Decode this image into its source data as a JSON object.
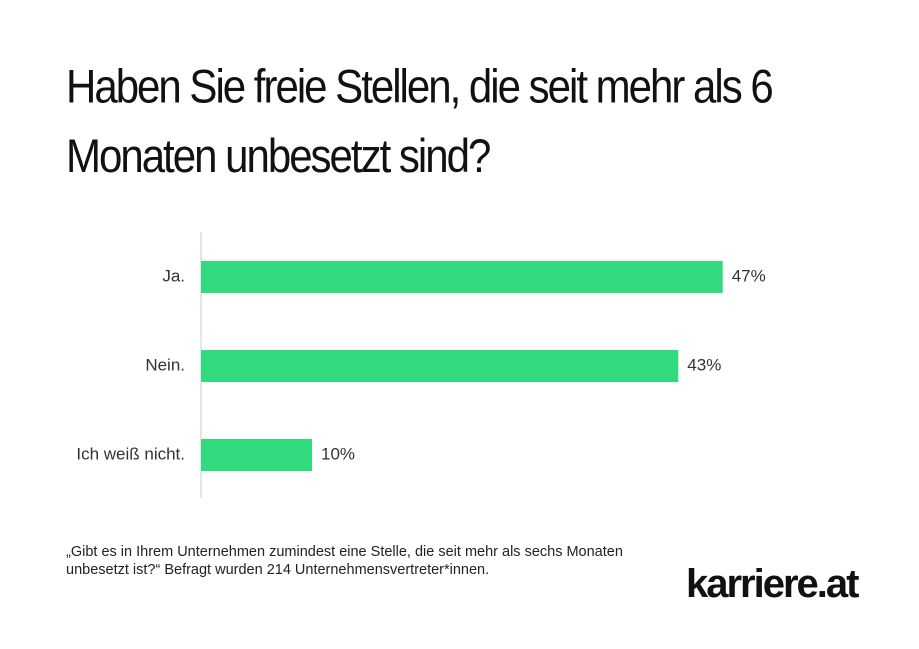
{
  "chart_data": {
    "type": "bar",
    "orientation": "horizontal",
    "title": "Haben Sie freie Stellen, die seit mehr als 6 Monaten unbesetzt sind?",
    "categories": [
      "Ja.",
      "Nein.",
      "Ich weiß nicht."
    ],
    "values": [
      47,
      43,
      10
    ],
    "value_labels": [
      "47%",
      "43%",
      "10%"
    ],
    "color": "#33d97d",
    "note": "„Gibt es in Ihrem Unternehmen zumindest eine Stelle, die seit mehr als sechs Monaten unbesetzt ist?“ Befragt wurden 214 Unternehmensvertreter*innen.",
    "logo": "karriere.at"
  }
}
